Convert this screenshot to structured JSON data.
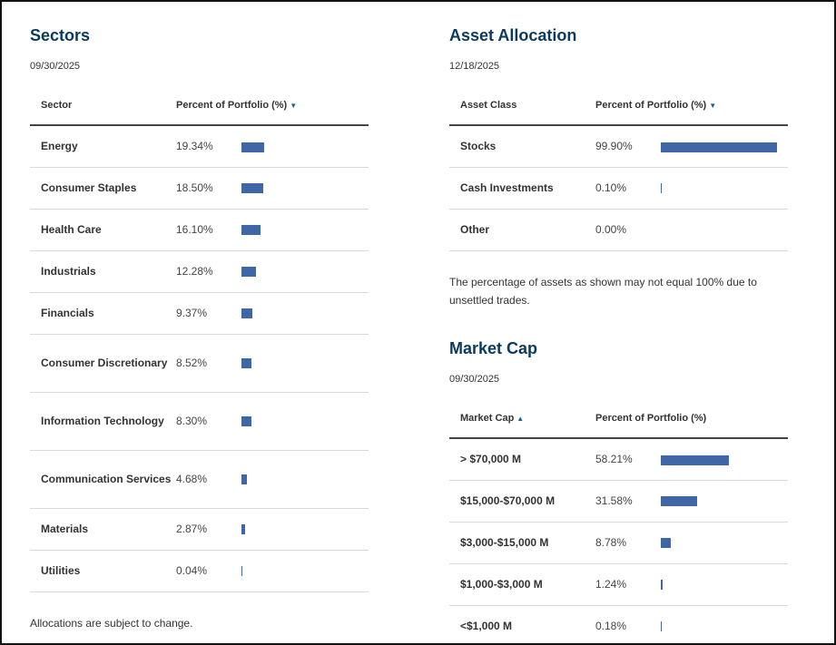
{
  "sectors": {
    "title": "Sectors",
    "date": "09/30/2025",
    "col1": "Sector",
    "col2": "Percent of Portfolio (%)",
    "sort_icon": "triangle-down",
    "rows": [
      {
        "label": "Energy",
        "value": "19.34%",
        "pct": 19.34
      },
      {
        "label": "Consumer Staples",
        "value": "18.50%",
        "pct": 18.5
      },
      {
        "label": "Health Care",
        "value": "16.10%",
        "pct": 16.1
      },
      {
        "label": "Industrials",
        "value": "12.28%",
        "pct": 12.28
      },
      {
        "label": "Financials",
        "value": "9.37%",
        "pct": 9.37
      },
      {
        "label": "Consumer Discretionary",
        "value": "8.52%",
        "pct": 8.52
      },
      {
        "label": "Information Technology",
        "value": "8.30%",
        "pct": 8.3
      },
      {
        "label": "Communication Services",
        "value": "4.68%",
        "pct": 4.68
      },
      {
        "label": "Materials",
        "value": "2.87%",
        "pct": 2.87
      },
      {
        "label": "Utilities",
        "value": "0.04%",
        "pct": 0.04
      }
    ],
    "note": "Allocations are subject to change."
  },
  "asset": {
    "title": "Asset Allocation",
    "date": "12/18/2025",
    "col1": "Asset Class",
    "col2": "Percent of Portfolio (%)",
    "sort_icon": "triangle-down",
    "rows": [
      {
        "label": "Stocks",
        "value": "99.90%",
        "pct": 99.9
      },
      {
        "label": "Cash Investments",
        "value": "0.10%",
        "pct": 0.1
      },
      {
        "label": "Other",
        "value": "0.00%",
        "pct": 0
      }
    ],
    "note": "The percentage of assets as shown may not equal 100% due to unsettled trades."
  },
  "marketcap": {
    "title": "Market Cap",
    "date": "09/30/2025",
    "col1": "Market Cap",
    "col2": "Percent of Portfolio (%)",
    "sort_icon": "triangle-up",
    "rows": [
      {
        "label": "> $70,000 M",
        "value": "58.21%",
        "pct": 58.21
      },
      {
        "label": "$15,000-$70,000 M",
        "value": "31.58%",
        "pct": 31.58
      },
      {
        "label": "$3,000-$15,000 M",
        "value": "8.78%",
        "pct": 8.78
      },
      {
        "label": "$1,000-$3,000 M",
        "value": "1.24%",
        "pct": 1.24
      },
      {
        "label": "<$1,000 M",
        "value": "0.18%",
        "pct": 0.18
      }
    ]
  },
  "bar_color": "#3f67a8"
}
